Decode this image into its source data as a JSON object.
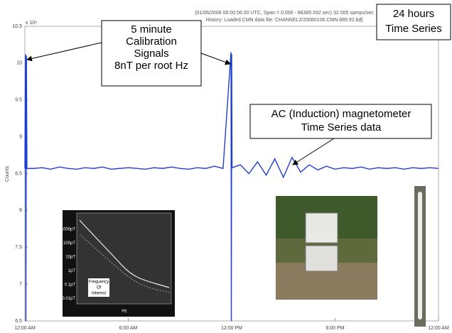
{
  "chart_data": {
    "type": "line",
    "header": [
      "(01/06/2008 08:00:56.00 UTC, Span = 0.000 - 86385.592 sec)  32.005 samps/sec",
      "History: Loaded CMN data file: CHANNEL2/20080106.CMN.889.92.bd]"
    ],
    "y_label": "Counts",
    "y_exponent": "x 10⁶",
    "x": [
      0,
      0.04,
      0.06,
      0.09,
      0.12,
      0.5,
      1,
      1.5,
      2,
      2.5,
      3,
      3.5,
      4,
      4.5,
      5,
      5.5,
      6,
      6.5,
      7,
      7.5,
      8,
      8.5,
      9,
      9.5,
      10,
      10.5,
      11,
      11.5,
      11.96,
      11.98,
      12,
      12.02,
      12.5,
      13,
      13.5,
      14,
      14.5,
      15,
      15.5,
      16,
      16.5,
      17,
      17.5,
      18,
      18.5,
      19,
      19.5,
      20,
      20.5,
      21,
      21.5,
      22,
      22.5,
      23,
      23.5,
      24
    ],
    "series": [
      {
        "color": "#1f3fd0",
        "values": [
          8.57,
          10.12,
          6.5,
          10.1,
          8.57,
          8.57,
          8.58,
          8.56,
          8.59,
          8.57,
          8.56,
          8.58,
          8.57,
          8.59,
          8.56,
          8.57,
          8.58,
          8.57,
          8.56,
          8.58,
          8.57,
          8.59,
          8.57,
          8.56,
          8.58,
          8.57,
          8.6,
          8.57,
          10.15,
          6.5,
          10.12,
          8.58,
          8.62,
          8.5,
          8.66,
          8.48,
          8.7,
          8.45,
          8.72,
          8.52,
          8.62,
          8.55,
          8.6,
          8.56,
          8.58,
          8.57,
          8.59,
          8.56,
          8.58,
          8.57,
          8.58,
          8.56,
          8.58,
          8.57,
          8.58,
          8.57
        ]
      }
    ],
    "xlim": [
      0,
      24
    ],
    "xticks": [
      {
        "value": 0,
        "label": "12:00 AM"
      },
      {
        "value": 6,
        "label": "6:00 AM"
      },
      {
        "value": 12,
        "label": "12:00 PM"
      },
      {
        "value": 18,
        "label": "6:00 PM"
      },
      {
        "value": 24,
        "label": "12:00 AM"
      }
    ],
    "ylim": [
      6.5,
      10.5
    ],
    "yticks": [
      6.5,
      7,
      7.5,
      8,
      8.5,
      9,
      9.5,
      10,
      10.5
    ],
    "annotations": [
      {
        "lines": [
          "5 minute",
          "Calibration",
          "Signals",
          "8nT per root Hz"
        ]
      },
      {
        "lines": [
          "AC (Induction) magnetometer",
          "Time Series data"
        ]
      },
      {
        "lines": [
          "24 hours",
          "Time Series"
        ]
      }
    ]
  },
  "inset_chart": {
    "labels": [
      "1000pT",
      "100pT",
      "10pT",
      "1pT",
      "0.1pT",
      "0.01pT"
    ],
    "note": [
      "Frequency",
      "Of",
      "Interest"
    ],
    "x_label": "Hz"
  }
}
